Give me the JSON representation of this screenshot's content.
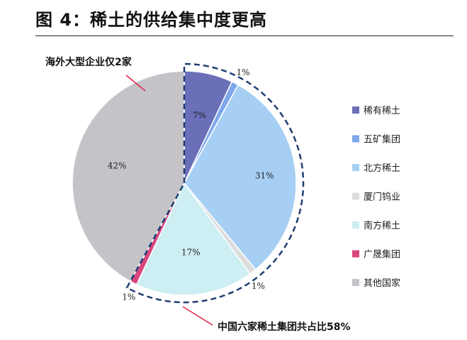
{
  "figure": {
    "title": "图 4：稀土的供给集中度更高",
    "annotation_top": "海外大型企业仅2家",
    "annotation_bottom": "中国六家稀土集团共占比58%"
  },
  "chart_data": {
    "type": "pie",
    "start_angle_deg": 0,
    "direction": "clockwise",
    "legend_position": "right",
    "highlight_group": {
      "label": "中国六家稀土集团共占比58%",
      "members": [
        "稀有稀土",
        "五矿集团",
        "北方稀土",
        "厦门钨业",
        "南方稀土",
        "广晟集团"
      ],
      "total": 58,
      "style": "dashed-outline"
    },
    "slices": [
      {
        "label": "稀有稀土",
        "value": 7,
        "value_label": "7%",
        "color": "#6b6fb8"
      },
      {
        "label": "五矿集团",
        "value": 1,
        "value_label": "1%",
        "color": "#7da6ec"
      },
      {
        "label": "北方稀土",
        "value": 31,
        "value_label": "31%",
        "color": "#a6cff3"
      },
      {
        "label": "厦门钨业",
        "value": 1,
        "value_label": "1%",
        "color": "#dcdcdc"
      },
      {
        "label": "南方稀土",
        "value": 17,
        "value_label": "17%",
        "color": "#cdeef3"
      },
      {
        "label": "广晟集团",
        "value": 1,
        "value_label": "1%",
        "color": "#d9467d"
      },
      {
        "label": "其他国家",
        "value": 42,
        "value_label": "42%",
        "color": "#c4c4c8"
      }
    ]
  }
}
